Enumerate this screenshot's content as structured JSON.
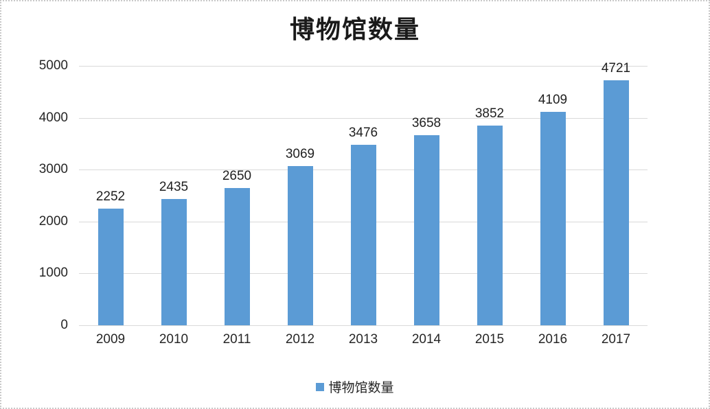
{
  "chart_data": {
    "type": "bar",
    "title": "博物馆数量",
    "categories": [
      "2009",
      "2010",
      "2011",
      "2012",
      "2013",
      "2014",
      "2015",
      "2016",
      "2017"
    ],
    "values": [
      2252,
      2435,
      2650,
      3069,
      3476,
      3658,
      3852,
      4109,
      4721
    ],
    "series_name": "博物馆数量",
    "legend_label": "博物馆数量",
    "xlabel": "",
    "ylabel": "",
    "ylim": [
      0,
      5000
    ],
    "yticks": [
      0,
      1000,
      2000,
      3000,
      4000,
      5000
    ],
    "grid": true,
    "legend_position": "bottom",
    "data_labels": true,
    "bar_color": "#5B9BD5",
    "gridline_color": "#D9D9D9",
    "text_color": "#262626"
  }
}
